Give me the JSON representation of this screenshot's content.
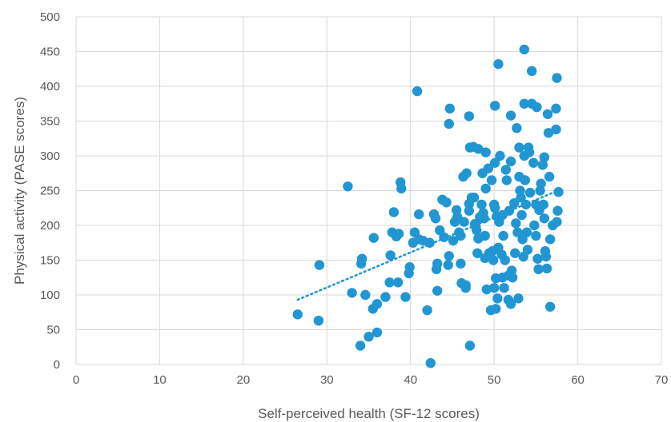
{
  "chart_data": {
    "type": "scatter",
    "title": "",
    "xlabel": "Self-perceived health (SF-12 scores)",
    "ylabel": "Physical activity (PASE scores)",
    "xlim": [
      0,
      70
    ],
    "ylim": [
      0,
      500
    ],
    "xticks": [
      0,
      10,
      20,
      30,
      40,
      50,
      60,
      70
    ],
    "yticks": [
      0,
      50,
      100,
      150,
      200,
      250,
      300,
      350,
      400,
      450,
      500
    ],
    "grid": true,
    "legend": "none",
    "marker_color": "#2196d3",
    "trendline": {
      "style": "dotted",
      "color": "#2196d3",
      "from": [
        26.5,
        93
      ],
      "to": [
        58,
        252
      ]
    },
    "points": [
      [
        26.5,
        72
      ],
      [
        29,
        63
      ],
      [
        29.1,
        143
      ],
      [
        32.5,
        256
      ],
      [
        33,
        103
      ],
      [
        34,
        27
      ],
      [
        34.1,
        145
      ],
      [
        34.2,
        152
      ],
      [
        34.6,
        100
      ],
      [
        35,
        40
      ],
      [
        35.5,
        80
      ],
      [
        35.6,
        182
      ],
      [
        36,
        87
      ],
      [
        36,
        46
      ],
      [
        37,
        97
      ],
      [
        37.5,
        118
      ],
      [
        37.6,
        157
      ],
      [
        37.8,
        190
      ],
      [
        38,
        219
      ],
      [
        38.3,
        184
      ],
      [
        38.5,
        118
      ],
      [
        38.6,
        188
      ],
      [
        38.8,
        262
      ],
      [
        38.9,
        253
      ],
      [
        39.4,
        97
      ],
      [
        39.8,
        131
      ],
      [
        39.9,
        140
      ],
      [
        40.3,
        175
      ],
      [
        40.5,
        190
      ],
      [
        40.8,
        393
      ],
      [
        41,
        216
      ],
      [
        41,
        180
      ],
      [
        41.5,
        178
      ],
      [
        42,
        78
      ],
      [
        42.3,
        175
      ],
      [
        42.4,
        2
      ],
      [
        42.8,
        216
      ],
      [
        43,
        210
      ],
      [
        43.1,
        137
      ],
      [
        43.2,
        145
      ],
      [
        43.2,
        106
      ],
      [
        43.5,
        193
      ],
      [
        43.8,
        237
      ],
      [
        44,
        183
      ],
      [
        44.3,
        233
      ],
      [
        44.5,
        143
      ],
      [
        44.6,
        346
      ],
      [
        44.6,
        156
      ],
      [
        44.7,
        368
      ],
      [
        45.1,
        178
      ],
      [
        45.3,
        205
      ],
      [
        45.5,
        222
      ],
      [
        45.6,
        212
      ],
      [
        45.8,
        190
      ],
      [
        46,
        185
      ],
      [
        46,
        145
      ],
      [
        46.1,
        117
      ],
      [
        46.3,
        270
      ],
      [
        46.4,
        205
      ],
      [
        46.6,
        114
      ],
      [
        46.6,
        110
      ],
      [
        46.7,
        275
      ],
      [
        47,
        231
      ],
      [
        47,
        221
      ],
      [
        47.1,
        312
      ],
      [
        47,
        357
      ],
      [
        47.1,
        27
      ],
      [
        47.3,
        240
      ],
      [
        47.5,
        313
      ],
      [
        47.6,
        240
      ],
      [
        47.7,
        202
      ],
      [
        47.8,
        198
      ],
      [
        47.9,
        193
      ],
      [
        48.0,
        160
      ],
      [
        48.1,
        310
      ],
      [
        48.1,
        181
      ],
      [
        48.3,
        212
      ],
      [
        48.4,
        210
      ],
      [
        48.5,
        230
      ],
      [
        48.6,
        275
      ],
      [
        48.7,
        218
      ],
      [
        48.8,
        210
      ],
      [
        48.9,
        185
      ],
      [
        48.9,
        153
      ],
      [
        49,
        305
      ],
      [
        49,
        253
      ],
      [
        49.1,
        108
      ],
      [
        49.3,
        282
      ],
      [
        49.4,
        160
      ],
      [
        49.6,
        78
      ],
      [
        49.7,
        265
      ],
      [
        49.8,
        163
      ],
      [
        49.9,
        150
      ],
      [
        50,
        110
      ],
      [
        50,
        230
      ],
      [
        50.1,
        225
      ],
      [
        50.1,
        372
      ],
      [
        50.1,
        290
      ],
      [
        50.2,
        124
      ],
      [
        50.2,
        80
      ],
      [
        50.3,
        213
      ],
      [
        50.4,
        95
      ],
      [
        50.5,
        168
      ],
      [
        50.5,
        432
      ],
      [
        50.6,
        205
      ],
      [
        50.7,
        300
      ],
      [
        50.9,
        158
      ],
      [
        51,
        215
      ],
      [
        51,
        125
      ],
      [
        51.1,
        185
      ],
      [
        51.2,
        110
      ],
      [
        51.3,
        150
      ],
      [
        51.4,
        280
      ],
      [
        51.5,
        265
      ],
      [
        51.7,
        128
      ],
      [
        51.7,
        93
      ],
      [
        51.8,
        221
      ],
      [
        52,
        358
      ],
      [
        52,
        292
      ],
      [
        52.0,
        87
      ],
      [
        52.1,
        135
      ],
      [
        52.2,
        125
      ],
      [
        52.4,
        232
      ],
      [
        52.5,
        160
      ],
      [
        52.6,
        203
      ],
      [
        52.7,
        340
      ],
      [
        52.8,
        190
      ],
      [
        52.9,
        95
      ],
      [
        53.0,
        312
      ],
      [
        53.0,
        270
      ],
      [
        53.1,
        250
      ],
      [
        53.2,
        240
      ],
      [
        53.3,
        215
      ],
      [
        53.4,
        180
      ],
      [
        53.5,
        155
      ],
      [
        53.6,
        375
      ],
      [
        53.6,
        453
      ],
      [
        53.6,
        300
      ],
      [
        53.7,
        265
      ],
      [
        53.8,
        230
      ],
      [
        53.9,
        190
      ],
      [
        54,
        165
      ],
      [
        54.1,
        312
      ],
      [
        54.2,
        305
      ],
      [
        54.3,
        247
      ],
      [
        54.5,
        375
      ],
      [
        54.5,
        422
      ],
      [
        54.7,
        290
      ],
      [
        54.8,
        200
      ],
      [
        55,
        230
      ],
      [
        55,
        185
      ],
      [
        55.1,
        370
      ],
      [
        55.2,
        152
      ],
      [
        55.3,
        137
      ],
      [
        55.4,
        222
      ],
      [
        55.5,
        250
      ],
      [
        55.6,
        260
      ],
      [
        55.8,
        287
      ],
      [
        55.9,
        230
      ],
      [
        56,
        298
      ],
      [
        56,
        210
      ],
      [
        56.1,
        163
      ],
      [
        56.2,
        155
      ],
      [
        56.3,
        138
      ],
      [
        56.4,
        360
      ],
      [
        56.5,
        333
      ],
      [
        56.6,
        270
      ],
      [
        56.7,
        83
      ],
      [
        56.7,
        180
      ],
      [
        57,
        200
      ],
      [
        57.4,
        338
      ],
      [
        57.4,
        368
      ],
      [
        57.5,
        412
      ],
      [
        57.5,
        205
      ],
      [
        57.6,
        221
      ],
      [
        57.7,
        248
      ]
    ]
  }
}
